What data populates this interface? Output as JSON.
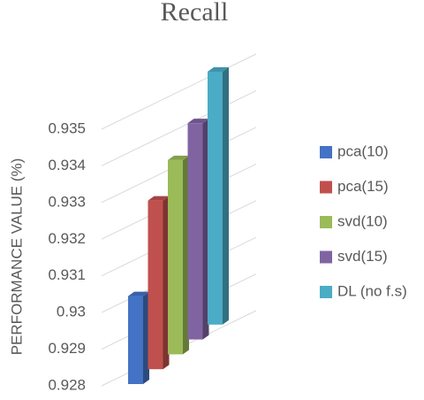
{
  "chart_data": {
    "type": "bar3d",
    "title": "Recall",
    "y_label": "PERFORMANCE VALUE (%)",
    "series": [
      {
        "name": "pca(10)",
        "color": "#4472c4",
        "values": [
          0.9304
        ]
      },
      {
        "name": "pca(15)",
        "color": "#c0504d",
        "values": [
          0.9326
        ]
      },
      {
        "name": "svd(10)",
        "color": "#9bbb59",
        "values": [
          0.9333
        ]
      },
      {
        "name": "svd(15)",
        "color": "#8064a2",
        "values": [
          0.9339
        ]
      },
      {
        "name": "DL (no f.s)",
        "color": "#4bacc6",
        "values": [
          0.9349
        ]
      }
    ],
    "ylim": [
      0.928,
      0.935
    ],
    "yticks": [
      0.928,
      0.929,
      0.93,
      0.931,
      0.932,
      0.933,
      0.934,
      0.935
    ],
    "grid": true,
    "legend": "right"
  }
}
